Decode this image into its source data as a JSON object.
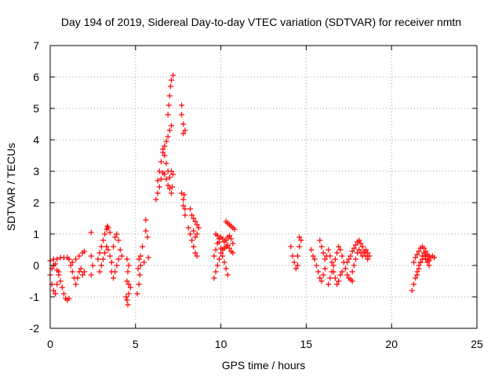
{
  "chart_data": {
    "type": "scatter",
    "title": "Day 194 of 2019, Sidereal Day-to-day VTEC variation (SDTVAR) for receiver nmtn",
    "xlabel": "GPS time / hours",
    "ylabel": "SDTVAR / TECUs",
    "xlim": [
      0,
      25
    ],
    "ylim": [
      -2,
      7
    ],
    "xticks": [
      "0",
      "5",
      "10",
      "15",
      "20",
      "25"
    ],
    "yticks": [
      "-2",
      "-1",
      "0",
      "1",
      "2",
      "3",
      "4",
      "5",
      "6",
      "7"
    ],
    "grid": true,
    "marker": "+",
    "color": "#ff0000",
    "series": [
      {
        "name": "SDTVAR",
        "points": [
          [
            0.0,
            -0.3
          ],
          [
            0.1,
            -0.6
          ],
          [
            0.2,
            -0.8
          ],
          [
            0.3,
            -0.9
          ],
          [
            0.4,
            -0.6
          ],
          [
            0.5,
            -0.3
          ],
          [
            0.6,
            -0.5
          ],
          [
            0.7,
            -0.7
          ],
          [
            0.8,
            -0.9
          ],
          [
            0.9,
            -1.05
          ],
          [
            1.0,
            -1.1
          ],
          [
            1.1,
            -1.05
          ],
          [
            0.0,
            0.15
          ],
          [
            0.2,
            0.2
          ],
          [
            0.4,
            0.2
          ],
          [
            0.6,
            0.25
          ],
          [
            0.8,
            0.25
          ],
          [
            1.0,
            0.25
          ],
          [
            1.1,
            0.2
          ],
          [
            0.1,
            -0.1
          ],
          [
            0.2,
            0.0
          ],
          [
            0.3,
            0.05
          ],
          [
            0.4,
            -0.15
          ],
          [
            0.5,
            -0.2
          ],
          [
            1.2,
            0.0
          ],
          [
            1.3,
            -0.2
          ],
          [
            1.4,
            -0.4
          ],
          [
            1.5,
            -0.6
          ],
          [
            1.6,
            -0.4
          ],
          [
            1.7,
            -0.2
          ],
          [
            1.8,
            -0.1
          ],
          [
            1.9,
            -0.3
          ],
          [
            2.0,
            -0.2
          ],
          [
            1.3,
            0.1
          ],
          [
            1.5,
            0.2
          ],
          [
            1.7,
            0.3
          ],
          [
            1.9,
            0.4
          ],
          [
            2.0,
            0.45
          ],
          [
            2.4,
            1.05
          ],
          [
            2.4,
            0.3
          ],
          [
            2.4,
            -0.3
          ],
          [
            2.5,
            0.0
          ],
          [
            2.8,
            0.2
          ],
          [
            2.9,
            0.4
          ],
          [
            3.0,
            0.6
          ],
          [
            3.1,
            0.8
          ],
          [
            3.2,
            1.0
          ],
          [
            3.3,
            1.15
          ],
          [
            3.35,
            1.25
          ],
          [
            3.4,
            1.2
          ],
          [
            3.5,
            1.05
          ],
          [
            2.9,
            -0.2
          ],
          [
            3.0,
            0.0
          ],
          [
            3.1,
            0.2
          ],
          [
            3.2,
            0.4
          ],
          [
            3.3,
            0.6
          ],
          [
            3.4,
            0.5
          ],
          [
            3.5,
            0.3
          ],
          [
            3.6,
            0.1
          ],
          [
            3.6,
            -0.2
          ],
          [
            3.7,
            -0.4
          ],
          [
            3.8,
            -0.2
          ],
          [
            3.9,
            0.0
          ],
          [
            4.0,
            0.2
          ],
          [
            3.7,
            0.6
          ],
          [
            3.8,
            0.9
          ],
          [
            3.9,
            1.0
          ],
          [
            4.0,
            0.8
          ],
          [
            4.1,
            0.5
          ],
          [
            4.2,
            0.3
          ],
          [
            4.5,
            -0.5
          ],
          [
            4.6,
            -0.6
          ],
          [
            4.7,
            -0.7
          ],
          [
            4.45,
            -1.0
          ],
          [
            4.5,
            -1.1
          ],
          [
            4.55,
            -1.25
          ],
          [
            4.6,
            -0.9
          ],
          [
            4.55,
            -0.2
          ],
          [
            4.6,
            0.0
          ],
          [
            4.5,
            0.2
          ],
          [
            5.1,
            -0.9
          ],
          [
            5.2,
            -0.6
          ],
          [
            5.25,
            -0.3
          ],
          [
            5.3,
            0.0
          ],
          [
            5.3,
            0.3
          ],
          [
            5.2,
            0.2
          ],
          [
            5.15,
            -0.1
          ],
          [
            5.4,
            0.6
          ],
          [
            5.5,
            0.1
          ],
          [
            5.6,
            1.1
          ],
          [
            5.6,
            1.45
          ],
          [
            5.7,
            0.9
          ],
          [
            5.75,
            0.25
          ],
          [
            6.2,
            2.1
          ],
          [
            6.3,
            2.3
          ],
          [
            6.4,
            2.5
          ],
          [
            6.5,
            2.75
          ],
          [
            6.6,
            2.95
          ],
          [
            6.7,
            2.9
          ],
          [
            6.8,
            2.75
          ],
          [
            6.9,
            2.55
          ],
          [
            7.0,
            2.45
          ],
          [
            7.1,
            2.3
          ],
          [
            7.15,
            2.5
          ],
          [
            6.3,
            2.7
          ],
          [
            6.4,
            3.0
          ],
          [
            6.5,
            3.3
          ],
          [
            6.6,
            3.6
          ],
          [
            6.7,
            3.8
          ],
          [
            6.8,
            3.95
          ],
          [
            6.9,
            4.1
          ],
          [
            7.0,
            4.3
          ],
          [
            7.1,
            4.45
          ],
          [
            6.6,
            3.7
          ],
          [
            6.7,
            3.5
          ],
          [
            6.8,
            3.25
          ],
          [
            6.9,
            3.0
          ],
          [
            7.0,
            2.8
          ],
          [
            7.1,
            3.0
          ],
          [
            7.2,
            2.9
          ],
          [
            6.9,
            4.8
          ],
          [
            6.95,
            5.1
          ],
          [
            7.0,
            5.4
          ],
          [
            7.05,
            5.7
          ],
          [
            7.1,
            5.9
          ],
          [
            7.2,
            6.05
          ],
          [
            7.7,
            5.1
          ],
          [
            7.7,
            4.8
          ],
          [
            7.8,
            4.5
          ],
          [
            7.8,
            4.2
          ],
          [
            7.9,
            4.3
          ],
          [
            7.7,
            2.3
          ],
          [
            7.8,
            2.1
          ],
          [
            7.8,
            1.9
          ],
          [
            7.9,
            1.8
          ],
          [
            7.9,
            1.6
          ],
          [
            7.85,
            2.25
          ],
          [
            8.1,
            1.2
          ],
          [
            8.2,
            1.0
          ],
          [
            8.3,
            0.8
          ],
          [
            8.4,
            0.6
          ],
          [
            8.5,
            0.4
          ],
          [
            8.6,
            0.3
          ],
          [
            8.2,
            1.8
          ],
          [
            8.3,
            1.6
          ],
          [
            8.4,
            1.5
          ],
          [
            8.5,
            1.4
          ],
          [
            8.6,
            1.3
          ],
          [
            8.7,
            1.2
          ],
          [
            8.6,
            1.0
          ],
          [
            8.5,
            0.9
          ],
          [
            8.4,
            1.1
          ],
          [
            9.6,
            -0.4
          ],
          [
            9.7,
            -0.2
          ],
          [
            9.8,
            0.0
          ],
          [
            9.9,
            0.2
          ],
          [
            10.0,
            0.4
          ],
          [
            10.1,
            0.5
          ],
          [
            10.2,
            0.55
          ],
          [
            10.3,
            0.6
          ],
          [
            10.4,
            0.65
          ],
          [
            10.5,
            0.55
          ],
          [
            10.6,
            0.45
          ],
          [
            10.7,
            0.4
          ],
          [
            9.6,
            0.3
          ],
          [
            9.7,
            0.5
          ],
          [
            9.8,
            0.7
          ],
          [
            9.9,
            0.85
          ],
          [
            10.0,
            0.9
          ],
          [
            10.1,
            0.85
          ],
          [
            10.2,
            0.75
          ],
          [
            10.3,
            0.8
          ],
          [
            10.4,
            0.9
          ],
          [
            10.5,
            0.95
          ],
          [
            10.6,
            0.85
          ],
          [
            10.7,
            0.7
          ],
          [
            9.7,
            1.0
          ],
          [
            9.8,
            0.95
          ],
          [
            9.9,
            0.75
          ],
          [
            10.0,
            0.55
          ],
          [
            10.1,
            0.3
          ],
          [
            10.2,
            0.1
          ],
          [
            10.3,
            -0.1
          ],
          [
            10.4,
            -0.3
          ],
          [
            10.3,
            1.4
          ],
          [
            10.4,
            1.35
          ],
          [
            10.5,
            1.3
          ],
          [
            10.6,
            1.25
          ],
          [
            10.7,
            1.2
          ],
          [
            10.8,
            1.15
          ],
          [
            14.1,
            0.6
          ],
          [
            14.2,
            0.3
          ],
          [
            14.3,
            0.1
          ],
          [
            14.4,
            -0.1
          ],
          [
            14.5,
            0.0
          ],
          [
            14.5,
            0.3
          ],
          [
            14.6,
            0.6
          ],
          [
            14.6,
            0.9
          ],
          [
            14.7,
            0.8
          ],
          [
            15.3,
            0.5
          ],
          [
            15.4,
            0.3
          ],
          [
            15.5,
            0.2
          ],
          [
            15.6,
            0.0
          ],
          [
            15.7,
            -0.2
          ],
          [
            15.8,
            -0.4
          ],
          [
            15.9,
            -0.5
          ],
          [
            16.0,
            -0.3
          ],
          [
            16.1,
            -0.1
          ],
          [
            15.8,
            0.8
          ],
          [
            15.9,
            0.6
          ],
          [
            16.0,
            0.4
          ],
          [
            16.1,
            0.2
          ],
          [
            16.2,
            0.3
          ],
          [
            16.3,
            0.5
          ],
          [
            16.4,
            0.3
          ],
          [
            16.5,
            0.1
          ],
          [
            16.6,
            -0.2
          ],
          [
            16.7,
            -0.4
          ],
          [
            16.8,
            -0.6
          ],
          [
            16.9,
            -0.5
          ],
          [
            17.0,
            -0.3
          ],
          [
            17.1,
            -0.2
          ],
          [
            16.3,
            -0.6
          ],
          [
            16.4,
            -0.4
          ],
          [
            16.5,
            -0.2
          ],
          [
            16.6,
            0.0
          ],
          [
            16.7,
            0.2
          ],
          [
            16.8,
            0.4
          ],
          [
            16.9,
            0.6
          ],
          [
            17.0,
            0.5
          ],
          [
            17.1,
            0.3
          ],
          [
            17.2,
            0.1
          ],
          [
            17.3,
            -0.1
          ],
          [
            17.4,
            -0.3
          ],
          [
            17.5,
            -0.4
          ],
          [
            17.6,
            -0.45
          ],
          [
            17.7,
            -0.5
          ],
          [
            17.4,
            0.1
          ],
          [
            17.5,
            0.2
          ],
          [
            17.6,
            0.3
          ],
          [
            17.7,
            0.45
          ],
          [
            17.8,
            0.55
          ],
          [
            17.9,
            0.65
          ],
          [
            18.0,
            0.75
          ],
          [
            18.1,
            0.8
          ],
          [
            18.2,
            0.7
          ],
          [
            18.3,
            0.6
          ],
          [
            18.4,
            0.45
          ],
          [
            18.5,
            0.3
          ],
          [
            18.6,
            0.2
          ],
          [
            17.7,
            -0.2
          ],
          [
            17.8,
            0.0
          ],
          [
            17.9,
            0.2
          ],
          [
            18.0,
            0.4
          ],
          [
            18.1,
            0.5
          ],
          [
            18.2,
            0.4
          ],
          [
            18.3,
            0.3
          ],
          [
            18.4,
            0.4
          ],
          [
            18.5,
            0.5
          ],
          [
            18.6,
            0.4
          ],
          [
            18.7,
            0.3
          ],
          [
            21.2,
            -0.8
          ],
          [
            21.3,
            -0.6
          ],
          [
            21.4,
            -0.4
          ],
          [
            21.5,
            -0.2
          ],
          [
            21.6,
            0.0
          ],
          [
            21.7,
            0.1
          ],
          [
            21.8,
            0.2
          ],
          [
            21.9,
            0.3
          ],
          [
            22.0,
            0.2
          ],
          [
            22.1,
            0.1
          ],
          [
            22.2,
            0.0
          ],
          [
            21.3,
            0.1
          ],
          [
            21.4,
            0.25
          ],
          [
            21.5,
            0.35
          ],
          [
            21.6,
            0.45
          ],
          [
            21.7,
            0.55
          ],
          [
            21.8,
            0.6
          ],
          [
            21.9,
            0.55
          ],
          [
            22.0,
            0.45
          ],
          [
            22.1,
            0.35
          ],
          [
            22.2,
            0.3
          ],
          [
            22.3,
            0.25
          ],
          [
            22.4,
            0.3
          ],
          [
            22.5,
            0.25
          ],
          [
            21.5,
            -0.3
          ],
          [
            21.6,
            -0.1
          ],
          [
            21.7,
            0.1
          ],
          [
            21.8,
            0.3
          ],
          [
            21.9,
            0.4
          ],
          [
            22.0,
            0.3
          ],
          [
            22.1,
            0.2
          ],
          [
            22.2,
            0.15
          ]
        ]
      }
    ]
  }
}
